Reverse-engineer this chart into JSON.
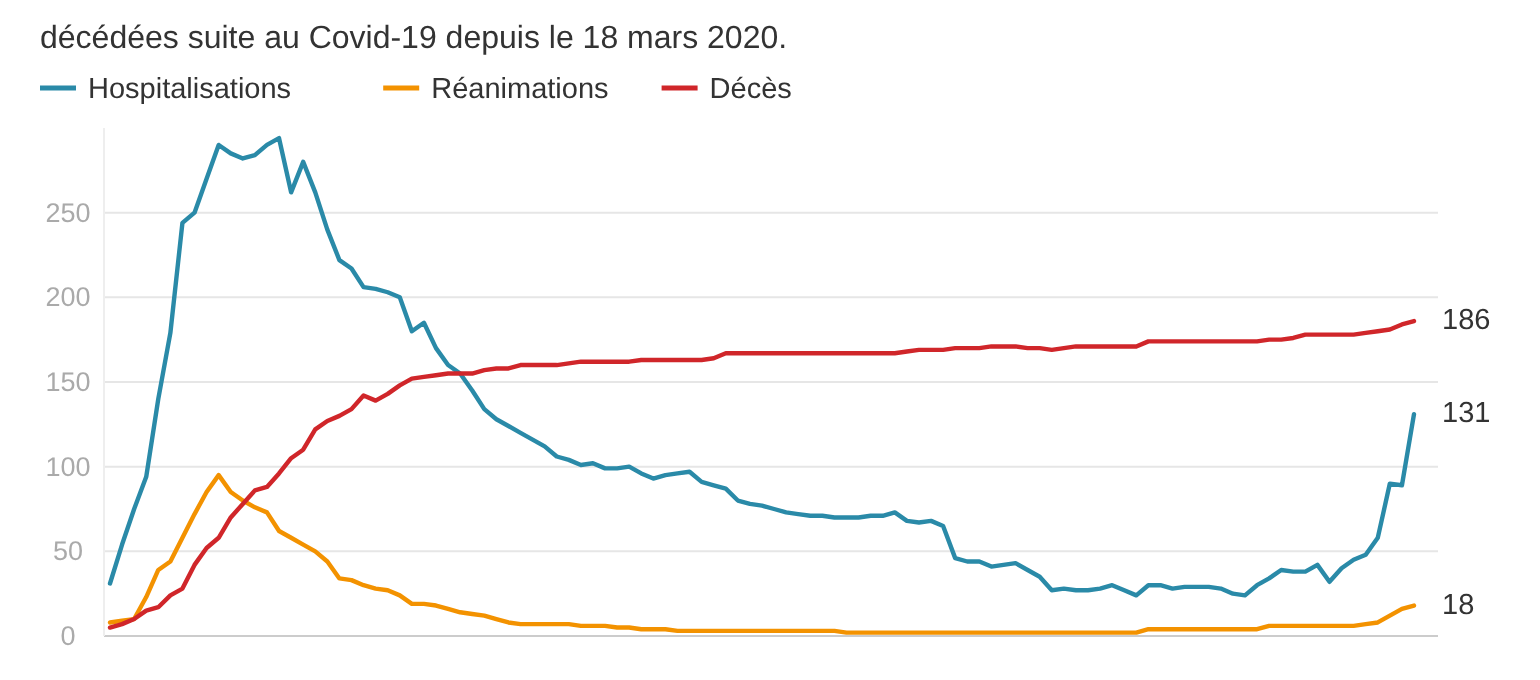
{
  "chart_data": {
    "type": "line",
    "title": "décédées suite au Covid-19 depuis le 18 mars 2020.",
    "legend": "top left",
    "grid": "y",
    "tick_labels": "y",
    "marker": "none",
    "line_style": "solid",
    "categories": [
      null,
      null,
      null,
      null,
      null,
      null,
      null,
      null,
      null,
      null,
      null,
      null,
      null,
      null,
      null,
      null,
      null,
      null,
      null,
      null,
      null,
      null,
      null,
      null,
      null,
      null,
      null,
      null,
      null,
      null,
      null,
      null,
      null,
      null,
      null,
      null,
      null,
      null,
      null,
      null,
      null,
      null,
      null,
      null,
      null,
      null,
      null,
      null,
      null,
      null,
      null,
      null,
      null,
      null,
      null,
      null,
      null,
      null,
      null,
      null,
      null,
      null,
      null,
      null,
      null,
      null,
      null,
      null,
      null,
      null,
      null,
      null,
      null,
      null,
      null,
      null,
      null,
      null,
      null,
      null,
      null,
      null,
      null,
      null,
      null,
      null,
      null,
      null,
      null,
      null,
      null,
      null,
      null,
      null,
      null,
      null,
      null,
      null,
      null,
      null,
      null,
      null,
      null,
      null,
      null,
      null,
      null,
      null,
      null
    ],
    "ylim": [
      0,
      300
    ],
    "yticks": [
      0,
      50,
      100,
      150,
      200,
      250
    ],
    "series": [
      {
        "name": "Hospitalisations",
        "color": "#2a8aa8",
        "values": [
          31,
          54,
          75,
          94,
          140,
          179,
          244,
          250,
          270,
          290,
          285,
          282,
          284,
          290,
          294,
          262,
          280,
          262,
          240,
          222,
          217,
          206,
          205,
          203,
          200,
          180,
          185,
          170,
          160,
          155,
          145,
          134,
          128,
          124,
          120,
          116,
          112,
          106,
          104,
          101,
          102,
          99,
          99,
          100,
          96,
          93,
          95,
          96,
          97,
          91,
          89,
          87,
          80,
          78,
          77,
          75,
          73,
          72,
          71,
          71,
          70,
          70,
          70,
          71,
          71,
          73,
          68,
          67,
          68,
          65,
          46,
          44,
          44,
          41,
          42,
          43,
          39,
          35,
          27,
          28,
          27,
          27,
          28,
          30,
          27,
          24,
          30,
          30,
          28,
          29,
          29,
          29,
          28,
          25,
          24,
          30,
          34,
          39,
          38,
          38,
          42,
          32,
          40,
          45,
          48,
          58,
          90,
          89,
          131
        ],
        "value_labels": [
          null,
          null,
          null,
          null,
          null,
          null,
          null,
          null,
          null,
          null,
          null,
          null,
          null,
          null,
          null,
          null,
          null,
          null,
          null,
          null,
          null,
          null,
          null,
          null,
          null,
          null,
          null,
          null,
          null,
          null,
          null,
          null,
          null,
          null,
          null,
          null,
          null,
          null,
          null,
          null,
          null,
          null,
          null,
          null,
          null,
          null,
          null,
          null,
          null,
          null,
          null,
          null,
          null,
          null,
          null,
          null,
          null,
          null,
          null,
          null,
          null,
          null,
          null,
          null,
          null,
          null,
          null,
          null,
          null,
          null,
          null,
          null,
          null,
          null,
          null,
          null,
          null,
          null,
          null,
          null,
          null,
          null,
          null,
          null,
          null,
          null,
          null,
          null,
          null,
          null,
          null,
          null,
          null,
          null,
          null,
          null,
          null,
          null,
          null,
          null,
          null,
          null,
          null,
          null,
          null,
          null,
          null,
          null,
          "131"
        ]
      },
      {
        "name": "Réanimations",
        "color": "#f39200",
        "values": [
          8,
          9,
          10,
          23,
          39,
          44,
          58,
          72,
          85,
          95,
          85,
          80,
          76,
          73,
          62,
          58,
          54,
          50,
          44,
          34,
          33,
          30,
          28,
          27,
          24,
          19,
          19,
          18,
          16,
          14,
          13,
          12,
          10,
          8,
          7,
          7,
          7,
          7,
          7,
          6,
          6,
          6,
          5,
          5,
          4,
          4,
          4,
          3,
          3,
          3,
          3,
          3,
          3,
          3,
          3,
          3,
          3,
          3,
          3,
          3,
          3,
          2,
          2,
          2,
          2,
          2,
          2,
          2,
          2,
          2,
          2,
          2,
          2,
          2,
          2,
          2,
          2,
          2,
          2,
          2,
          2,
          2,
          2,
          2,
          2,
          2,
          4,
          4,
          4,
          4,
          4,
          4,
          4,
          4,
          4,
          4,
          6,
          6,
          6,
          6,
          6,
          6,
          6,
          6,
          7,
          8,
          12,
          16,
          18
        ],
        "value_labels": [
          null,
          null,
          null,
          null,
          null,
          null,
          null,
          null,
          null,
          null,
          null,
          null,
          null,
          null,
          null,
          null,
          null,
          null,
          null,
          null,
          null,
          null,
          null,
          null,
          null,
          null,
          null,
          null,
          null,
          null,
          null,
          null,
          null,
          null,
          null,
          null,
          null,
          null,
          null,
          null,
          null,
          null,
          null,
          null,
          null,
          null,
          null,
          null,
          null,
          null,
          null,
          null,
          null,
          null,
          null,
          null,
          null,
          null,
          null,
          null,
          null,
          null,
          null,
          null,
          null,
          null,
          null,
          null,
          null,
          null,
          null,
          null,
          null,
          null,
          null,
          null,
          null,
          null,
          null,
          null,
          null,
          null,
          null,
          null,
          null,
          null,
          null,
          null,
          null,
          null,
          null,
          null,
          null,
          null,
          null,
          null,
          null,
          null,
          null,
          null,
          null,
          null,
          null,
          null,
          null,
          null,
          null,
          null,
          "18"
        ]
      },
      {
        "name": "Décès",
        "color": "#d0262a",
        "values": [
          5,
          7,
          10,
          15,
          17,
          24,
          28,
          42,
          52,
          58,
          70,
          78,
          86,
          88,
          96,
          105,
          110,
          122,
          127,
          130,
          134,
          142,
          139,
          143,
          148,
          152,
          153,
          154,
          155,
          155,
          155,
          157,
          158,
          158,
          160,
          160,
          160,
          160,
          161,
          162,
          162,
          162,
          162,
          162,
          163,
          163,
          163,
          163,
          163,
          163,
          164,
          167,
          167,
          167,
          167,
          167,
          167,
          167,
          167,
          167,
          167,
          167,
          167,
          167,
          167,
          167,
          168,
          169,
          169,
          169,
          170,
          170,
          170,
          171,
          171,
          171,
          170,
          170,
          169,
          170,
          171,
          171,
          171,
          171,
          171,
          171,
          174,
          174,
          174,
          174,
          174,
          174,
          174,
          174,
          174,
          174,
          175,
          175,
          176,
          178,
          178,
          178,
          178,
          178,
          179,
          180,
          181,
          184,
          186
        ],
        "value_labels": [
          null,
          null,
          null,
          null,
          null,
          null,
          null,
          null,
          null,
          null,
          null,
          null,
          null,
          null,
          null,
          null,
          null,
          null,
          null,
          null,
          null,
          null,
          null,
          null,
          null,
          null,
          null,
          null,
          null,
          null,
          null,
          null,
          null,
          null,
          null,
          null,
          null,
          null,
          null,
          null,
          null,
          null,
          null,
          null,
          null,
          null,
          null,
          null,
          null,
          null,
          null,
          null,
          null,
          null,
          null,
          null,
          null,
          null,
          null,
          null,
          null,
          null,
          null,
          null,
          null,
          null,
          null,
          null,
          null,
          null,
          null,
          null,
          null,
          null,
          null,
          null,
          null,
          null,
          null,
          null,
          null,
          null,
          null,
          null,
          null,
          null,
          null,
          null,
          null,
          null,
          null,
          null,
          null,
          null,
          null,
          null,
          null,
          null,
          null,
          null,
          null,
          null,
          null,
          null,
          null,
          null,
          null,
          null,
          "186"
        ]
      }
    ]
  }
}
